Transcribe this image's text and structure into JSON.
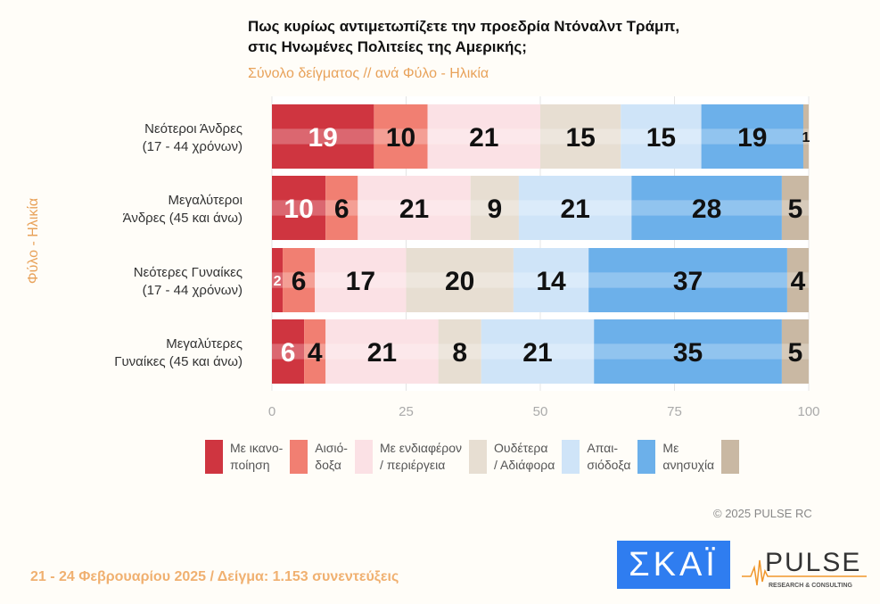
{
  "title_line1": "Πως κυρίως αντιμετωπίζετε την προεδρία Ντόναλντ Τράμπ,",
  "title_line2": "στις Ηνωμένες Πολιτείες της Αμερικής;",
  "subtitle": "Σύνολο δείγματος // ανά Φύλο - Ηλικία",
  "footer": "21 - 24 Φεβρουαρίου 2025  /  Δείγμα:  1.153 συνεντεύξεις",
  "copyright": "©  2025  PULSE RC",
  "logos": {
    "skai": "ΣΚΑΪ",
    "pulse": "PULSE",
    "pulse_sub": "RESEARCH & CONSULTING"
  },
  "chart_data": {
    "type": "bar",
    "orientation": "horizontal",
    "stacked": true,
    "ylabel": "Φύλο - Ηλικία",
    "xlim": [
      0,
      100
    ],
    "xticks": [
      "0",
      "25",
      "50",
      "75",
      "100"
    ],
    "grid": true,
    "legend_placement": "bottom",
    "categories": [
      [
        "Νεότεροι Άνδρες",
        "(17 - 44 χρόνων)"
      ],
      [
        "Μεγαλύτεροι",
        "Άνδρες (45 και άνω)"
      ],
      [
        "Νεότερες Γυναίκες",
        "(17 - 44 χρόνων)"
      ],
      [
        "Μεγαλύτερες",
        "Γυναίκες (45 και άνω)"
      ]
    ],
    "series": [
      {
        "name": "Με ικανο-\nποίηση",
        "color": "#cf3540",
        "values": [
          19,
          10,
          2,
          6
        ]
      },
      {
        "name": "Αισιό-\nδοξα",
        "color": "#f17f72",
        "values": [
          10,
          6,
          6,
          4
        ]
      },
      {
        "name": "Με ενδιαφέρον\n/ περιέργεια",
        "color": "#fbe1e5",
        "values": [
          21,
          21,
          17,
          21
        ]
      },
      {
        "name": "Ουδέτερα\n/ Αδιάφορα",
        "color": "#e7ded2",
        "values": [
          15,
          9,
          20,
          8
        ]
      },
      {
        "name": "Απαι-\nσιόδοξα",
        "color": "#cfe4f8",
        "values": [
          15,
          21,
          14,
          21
        ]
      },
      {
        "name": "Με\nανησυχία",
        "color": "#6cb0ea",
        "values": [
          19,
          28,
          37,
          35
        ]
      },
      {
        "name": "",
        "color": "#c9b8a3",
        "values": [
          1,
          5,
          4,
          5
        ]
      }
    ]
  }
}
